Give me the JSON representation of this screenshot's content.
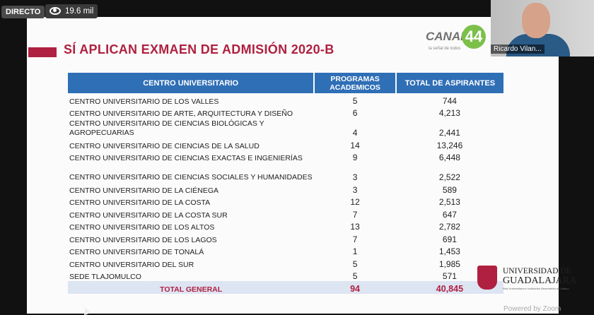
{
  "overlay": {
    "live_label": "DIRECTO",
    "views": "19.6 mil",
    "camera_name": "Ricardo Vilan...",
    "watermark": "Powered by Zoom"
  },
  "slide": {
    "title": "SÍ APLICAN EXMAEN DE ADMISIÓN 2020-B",
    "channel_logo": {
      "text": "CANAL",
      "number": "44",
      "tagline": "la señal de todos"
    },
    "university": {
      "line1": "UNIVERSIDAD DE",
      "line2": "GUADALAJARA",
      "line3": "Red Universitaria e Institución Benemérita de Jalisco"
    },
    "table": {
      "headers": [
        "CENTRO UNIVERSITARIO",
        "PROGRAMAS ACADEMICOS",
        "TOTAL DE ASPIRANTES"
      ],
      "rows": [
        {
          "name": "CENTRO UNIVERSITARIO DE LOS VALLES",
          "programs": "5",
          "applicants": "744"
        },
        {
          "name": "CENTRO UNIVERSITARIO DE ARTE, ARQUITECTURA Y DISEÑO",
          "programs": "6",
          "applicants": "4,213"
        },
        {
          "name": "CENTRO UNIVERSITARIO DE CIENCIAS BIOLÓGICAS Y AGROPECUARIAS",
          "programs": "4",
          "applicants": "2,441"
        },
        {
          "name": "CENTRO UNIVERSITARIO DE CIENCIAS DE LA SALUD",
          "programs": "14",
          "applicants": "13,246"
        },
        {
          "name": "CENTRO UNIVERSITARIO DE CIENCIAS EXACTAS E INGENIERÍAS",
          "programs": "9",
          "applicants": "6,448"
        },
        {
          "name": "CENTRO UNIVERSITARIO DE CIENCIAS SOCIALES Y HUMANIDADES",
          "programs": "3",
          "applicants": "2,522"
        },
        {
          "name": "CENTRO UNIVERSITARIO DE LA CIÉNEGA",
          "programs": "3",
          "applicants": "589"
        },
        {
          "name": "CENTRO UNIVERSITARIO DE LA COSTA",
          "programs": "12",
          "applicants": "2,513"
        },
        {
          "name": "CENTRO UNIVERSITARIO DE LA COSTA SUR",
          "programs": "7",
          "applicants": "647"
        },
        {
          "name": "CENTRO UNIVERSITARIO DE LOS ALTOS",
          "programs": "13",
          "applicants": "2,782"
        },
        {
          "name": "CENTRO UNIVERSITARIO DE LOS LAGOS",
          "programs": "7",
          "applicants": "691"
        },
        {
          "name": "CENTRO UNIVERSITARIO DE TONALÁ",
          "programs": "1",
          "applicants": "1,453"
        },
        {
          "name": "CENTRO UNIVERSITARIO DEL SUR",
          "programs": "5",
          "applicants": "1,985"
        },
        {
          "name": "SEDE TLAJOMULCO",
          "programs": "5",
          "applicants": "571"
        }
      ],
      "total": {
        "label": "TOTAL GENERAL",
        "programs": "94",
        "applicants": "40,845"
      }
    }
  }
}
